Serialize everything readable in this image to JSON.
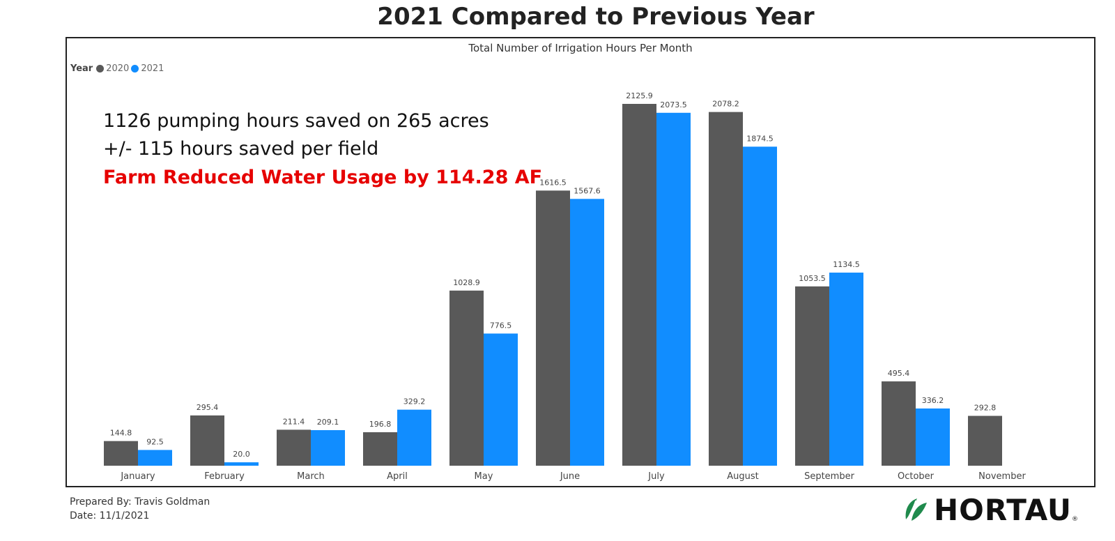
{
  "title": "2021 Compared to Previous Year",
  "subtitle": "Total Number of Irrigation Hours Per Month",
  "legend": {
    "title": "Year",
    "items": [
      {
        "label": "2020",
        "color": "#595959"
      },
      {
        "label": "2021",
        "color": "#118dff"
      }
    ]
  },
  "annotations": {
    "line1": "1126 pumping hours saved on 265 acres",
    "line2": "+/- 115 hours saved per field",
    "line3": "Farm Reduced Water Usage by 114.28 AF",
    "line3_color": "#e60000"
  },
  "footer": {
    "prepared_by": "Prepared By: Travis Goldman",
    "date": "Date: 11/1/2021"
  },
  "logo": {
    "text": "HORTAU",
    "icon": "leaf-icon",
    "icon_color": "#1f8a4c"
  },
  "chart_data": {
    "type": "bar",
    "title": "Total Number of Irrigation Hours Per Month",
    "categories": [
      "January",
      "February",
      "March",
      "April",
      "May",
      "June",
      "July",
      "August",
      "September",
      "October",
      "November"
    ],
    "series": [
      {
        "name": "2020",
        "color": "#595959",
        "values": [
          144.8,
          295.4,
          211.4,
          196.8,
          1028.9,
          1616.5,
          2125.9,
          2078.2,
          1053.5,
          495.4,
          292.8
        ]
      },
      {
        "name": "2021",
        "color": "#118dff",
        "values": [
          92.5,
          20.0,
          209.1,
          329.2,
          776.5,
          1567.6,
          2073.5,
          1874.5,
          1134.5,
          336.2,
          null
        ]
      }
    ],
    "ylim": [
      0,
      2125.9
    ],
    "legend_position": "top-left",
    "grid": false,
    "data_labels": true
  }
}
